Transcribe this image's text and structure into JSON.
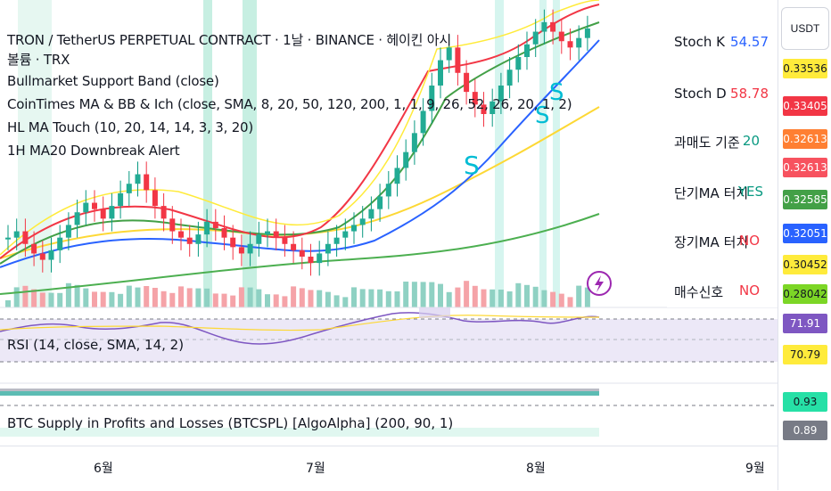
{
  "legend": {
    "title": "TRON / TetherUS PERPETUAL CONTRACT · 1날 · BINANCE · 헤이킨 아시",
    "volume": "볼륨 · TRX",
    "indicators": [
      "Bullmarket Support Band (close)",
      "CoinTimes MA & BB & Ich (close, SMA, 8, 20, 50, 120, 200, 1, 1, 9, 26, 52, 26, 20, 1, 2)",
      "HL MA Touch (10, 20, 14, 14, 3, 3, 20)",
      "1H MA20 Downbreak Alert"
    ]
  },
  "stoch_table": [
    {
      "label": "Stoch K",
      "value": "54.57",
      "color": "#2962ff"
    },
    {
      "label": "Stoch D",
      "value": "58.78",
      "color": "#f23645"
    },
    {
      "label": "과매도 기준",
      "value": "20",
      "color": "#089981"
    },
    {
      "label": "단기MA 터치",
      "value": "YES",
      "color": "#089981"
    },
    {
      "label": "장기MA 터치",
      "value": "NO",
      "color": "#f23645"
    },
    {
      "label": "매수신호",
      "value": "NO",
      "color": "#f23645"
    }
  ],
  "price_axis": {
    "currency": "USDT",
    "tags": [
      {
        "value": "0.33536",
        "bg": "#ffeb3b",
        "fg": "#131722"
      },
      {
        "value": "0.33405",
        "bg": "#f23645",
        "fg": "#ffffff"
      },
      {
        "value": "0.32613",
        "bg": "#ff7f32",
        "fg": "#ffffff"
      },
      {
        "value": "0.32613",
        "bg": "#f7525f",
        "fg": "#ffffff"
      },
      {
        "value": "0.32585",
        "bg": "#43a047",
        "fg": "#ffffff"
      },
      {
        "value": "0.32051",
        "bg": "#2962ff",
        "fg": "#ffffff"
      },
      {
        "value": "0.30452",
        "bg": "#ffeb3b",
        "fg": "#131722"
      },
      {
        "value": "0.28042",
        "bg": "#7cd626",
        "fg": "#131722"
      }
    ]
  },
  "rsi": {
    "label": "RSI (14, close, SMA, 14, 2)",
    "tags": [
      {
        "value": "71.91",
        "bg": "#7e57c2",
        "fg": "#ffffff"
      },
      {
        "value": "70.79",
        "bg": "#ffeb3b",
        "fg": "#131722"
      }
    ]
  },
  "btc_indicator": {
    "label": "BTC Supply in Profits and Losses (BTCSPL) [AlgoAlpha] (200, 90, 1)",
    "tags": [
      {
        "value": "0.93",
        "bg": "#26e0a6",
        "fg": "#131722"
      },
      {
        "value": "0.89",
        "bg": "#787b86",
        "fg": "#ffffff"
      }
    ]
  },
  "time_axis": [
    "6월",
    "7월",
    "8월",
    "9월"
  ],
  "chart_data": {
    "type": "candlestick",
    "series": [
      {
        "name": "close",
        "values": [
          0.27,
          0.272,
          0.268,
          0.265,
          0.263,
          0.266,
          0.27,
          0.274,
          0.278,
          0.281,
          0.279,
          0.276,
          0.28,
          0.284,
          0.287,
          0.29,
          0.285,
          0.28,
          0.276,
          0.272,
          0.27,
          0.268,
          0.271,
          0.275,
          0.273,
          0.27,
          0.267,
          0.265,
          0.268,
          0.271,
          0.272,
          0.27,
          0.268,
          0.266,
          0.264,
          0.262,
          0.265,
          0.268,
          0.27,
          0.272,
          0.274,
          0.276,
          0.279,
          0.283,
          0.287,
          0.292,
          0.297,
          0.303,
          0.31,
          0.318,
          0.326,
          0.33,
          0.322,
          0.316,
          0.312,
          0.309,
          0.313,
          0.318,
          0.323,
          0.327,
          0.331,
          0.335,
          0.338,
          0.335,
          0.332,
          0.33,
          0.333,
          0.336
        ]
      }
    ]
  }
}
